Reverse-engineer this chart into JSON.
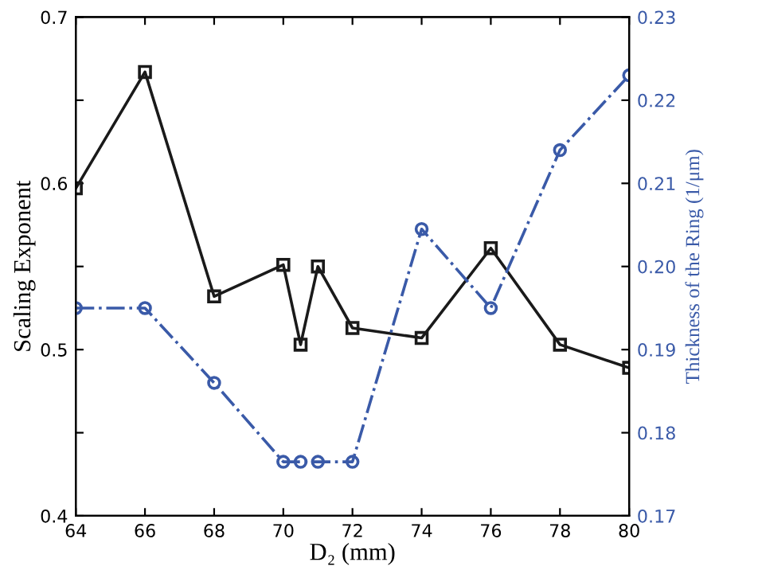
{
  "chart_data": {
    "type": "line",
    "xlabel": "D₂ (mm)",
    "ylabel": "Scaling Exponent",
    "y2label": "Thickness of the Ring (1/μm)",
    "xlim": [
      64,
      80
    ],
    "xticks": [
      64,
      66,
      68,
      70,
      72,
      74,
      76,
      78,
      80
    ],
    "ylim": [
      0.4,
      0.7
    ],
    "yticks": [
      0.4,
      {
        "value": 0.45,
        "label": null
      },
      0.5,
      {
        "value": 0.55,
        "label": null
      },
      0.6,
      {
        "value": 0.65,
        "label": null
      },
      0.7
    ],
    "y2lim": [
      0.17,
      0.23
    ],
    "y2ticks": [
      "0.17",
      {
        "value": 0.18,
        "label": "0.18"
      },
      {
        "value": 0.19,
        "label": "0.19"
      },
      {
        "value": 0.2,
        "label": "0.20"
      },
      {
        "value": 0.21,
        "label": "0.21"
      },
      {
        "value": 0.22,
        "label": "0.22"
      },
      {
        "value": 0.23,
        "label": "0.23"
      }
    ],
    "grid": false,
    "legend": false,
    "series": [
      {
        "color": "#1a1a1a",
        "marker": "square",
        "line_style": "solid",
        "x": [
          64,
          66,
          68,
          70,
          70.5,
          71,
          72,
          74,
          76,
          78,
          80
        ],
        "values": [
          0.597,
          0.667,
          0.532,
          0.551,
          0.503,
          0.55,
          0.513,
          0.507,
          0.561,
          0.503,
          0.489
        ]
      },
      {
        "color": "#3a5aa8",
        "marker": "circle",
        "line_style": "dashdot",
        "axis": "y2",
        "x": [
          64,
          66,
          68,
          70,
          70.5,
          71,
          72,
          74,
          76,
          78,
          80
        ],
        "values": [
          0.195,
          0.195,
          0.186,
          0.1765,
          0.1765,
          0.1765,
          0.1765,
          0.2045,
          0.195,
          0.214,
          0.223
        ]
      }
    ]
  }
}
